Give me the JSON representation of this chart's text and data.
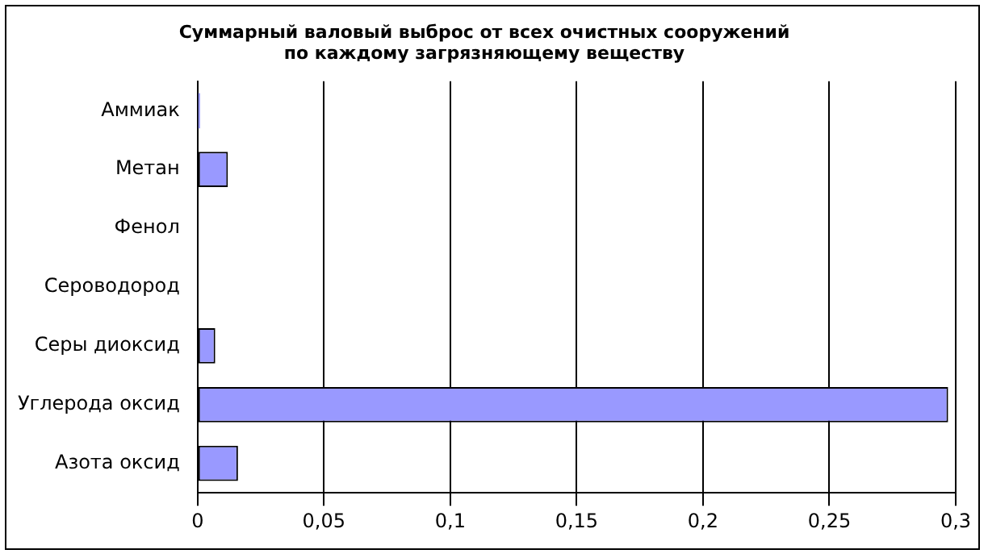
{
  "chart_data": {
    "type": "bar",
    "orientation": "horizontal",
    "title": "Суммарный валовый выброс от всех очистных сооружений по каждому загрязняющему веществу",
    "categories": [
      "Аммиак",
      "Метан",
      "Фенол",
      "Сероводород",
      "Серы диоксид",
      "Углерода оксид",
      "Азота оксид"
    ],
    "values": [
      0.001,
      0.012,
      0,
      0,
      0.007,
      0.297,
      0.016
    ],
    "color": "#9999ff",
    "xlim": [
      0,
      0.3
    ],
    "xticks": [
      {
        "value": 0,
        "label": "0"
      },
      {
        "value": 0.05,
        "label": "0,05"
      },
      {
        "value": 0.1,
        "label": "0,1"
      },
      {
        "value": 0.15,
        "label": "0,15"
      },
      {
        "value": 0.2,
        "label": "0,2"
      },
      {
        "value": 0.25,
        "label": "0,25"
      },
      {
        "value": 0.3,
        "label": "0,3"
      }
    ],
    "grid": "x",
    "legend": false
  }
}
